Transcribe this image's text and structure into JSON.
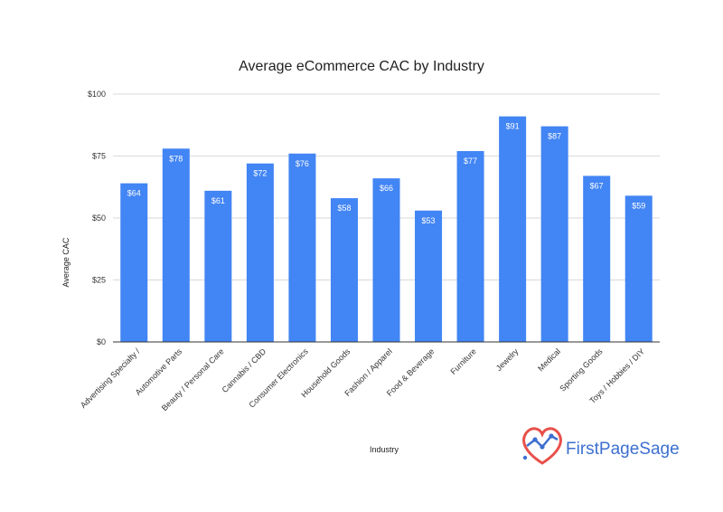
{
  "chart_data": {
    "type": "bar",
    "title": "Average eCommerce CAC by Industry",
    "xlabel": "Industry",
    "ylabel": "Average CAC",
    "categories": [
      "Advertising Specialty /",
      "Automotive Parts",
      "Beauty / Personal Care",
      "Cannabis / CBD",
      "Consumer Electronics",
      "Household Goods",
      "Fashion / Apparel",
      "Food & Beverage",
      "Furniture",
      "Jewelry",
      "Medical",
      "Sporting Goods",
      "Toys / Hobbies / DIY"
    ],
    "values": [
      64,
      78,
      61,
      72,
      76,
      58,
      66,
      53,
      77,
      91,
      87,
      67,
      59
    ],
    "value_labels": [
      "$64",
      "$78",
      "$61",
      "$72",
      "$76",
      "$58",
      "$66",
      "$53",
      "$77",
      "$91",
      "$87",
      "$67",
      "$59"
    ],
    "ylim": [
      0,
      100
    ],
    "yticks": [
      0,
      25,
      50,
      75,
      100
    ],
    "ytick_labels": [
      "$0",
      "$25",
      "$50",
      "$75",
      "$100"
    ],
    "grid": true,
    "bar_color": "#4285f4"
  },
  "logo": {
    "text": "FirstPageSage",
    "icon": "heart-chart-icon",
    "text_color": "#3d6fd1",
    "heart_color": "#e8504a"
  }
}
